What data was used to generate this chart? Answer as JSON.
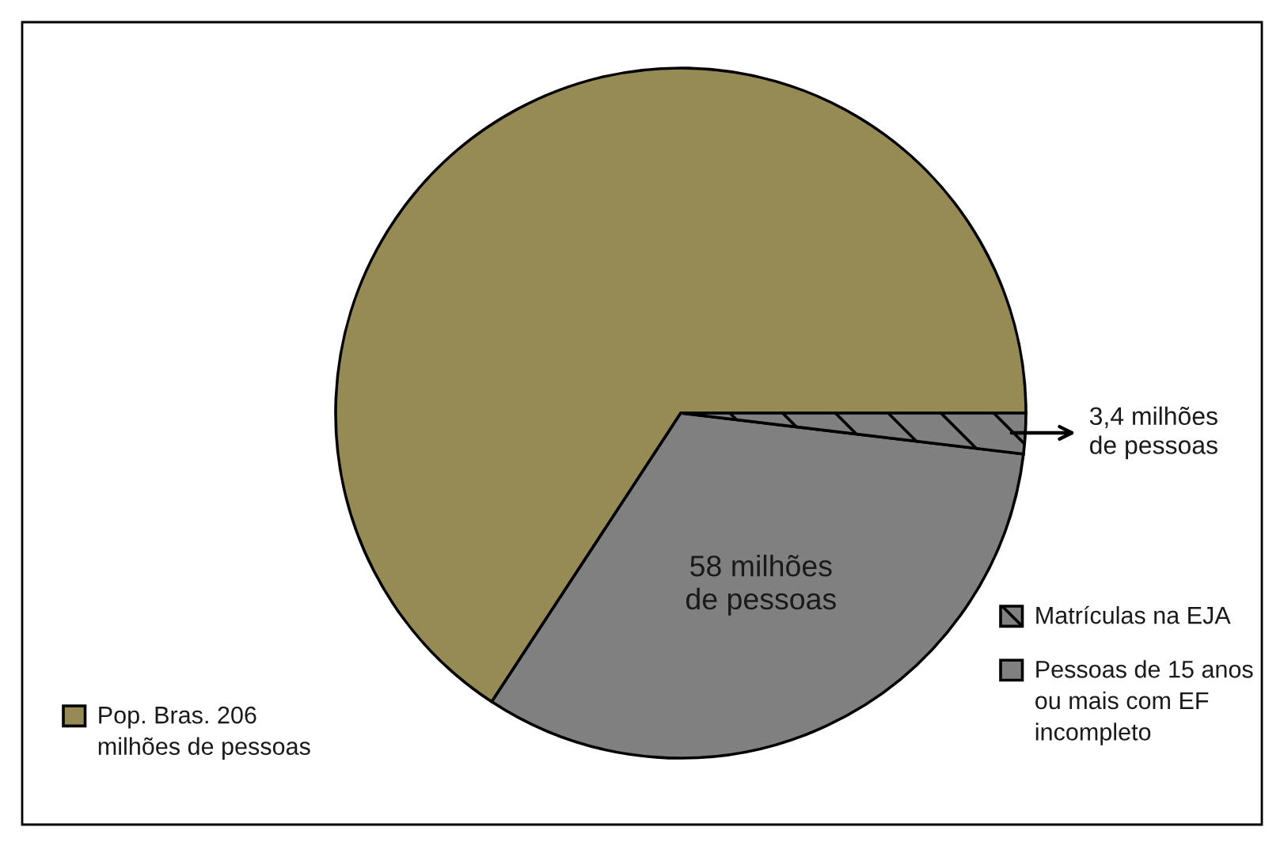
{
  "chart_data": {
    "type": "pie",
    "categories": [
      "Pop. Bras. 206\nmilhões de pessoas",
      "Pessoas de 15 anos\nou mais com EF\nincompleto",
      "Matrículas na EJA"
    ],
    "values": [
      118,
      58,
      3.4
    ],
    "colors": [
      "#968b55",
      "#808080",
      "#808080"
    ],
    "value_labels": [
      null,
      "58 milhões\nde pessoas",
      "3,4 milhões\nde pessoas"
    ],
    "legend": "bottom"
  }
}
